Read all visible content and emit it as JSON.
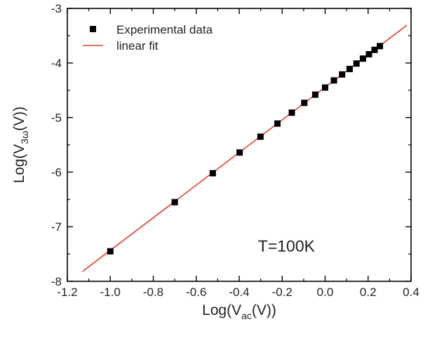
{
  "chart_data": {
    "type": "scatter",
    "title": "",
    "xlabel": {
      "prefix": "Log(V",
      "sub": "ac",
      "suffix": "(V))"
    },
    "ylabel": {
      "prefix": "Log(V",
      "sub": "3ω",
      "suffix": "(V))"
    },
    "xlim": [
      -1.2,
      0.4
    ],
    "ylim": [
      -8,
      -3
    ],
    "xticks": [
      -1.2,
      -1.0,
      -0.8,
      -0.6,
      -0.4,
      -0.2,
      0.0,
      0.2,
      0.4
    ],
    "xtick_labels": [
      "-1.2",
      "-1.0",
      "-0.8",
      "-0.6",
      "-0.4",
      "-0.2",
      "0.0",
      "0.2",
      "0.4"
    ],
    "yticks": [
      -8,
      -7,
      -6,
      -5,
      -4,
      -3
    ],
    "ytick_labels": [
      "-8",
      "-7",
      "-6",
      "-5",
      "-4",
      "-3"
    ],
    "grid": false,
    "legend_position": "top-left",
    "series": [
      {
        "name": "Experimental data",
        "kind": "scatter",
        "marker": "square",
        "color": "#000000",
        "x": [
          -1.0,
          -0.7,
          -0.523,
          -0.398,
          -0.301,
          -0.222,
          -0.155,
          -0.097,
          -0.046,
          0.0,
          0.041,
          0.079,
          0.114,
          0.146,
          0.176,
          0.204,
          0.23,
          0.255
        ],
        "y": [
          -7.45,
          -6.55,
          -6.02,
          -5.64,
          -5.35,
          -5.11,
          -4.91,
          -4.73,
          -4.58,
          -4.45,
          -4.32,
          -4.21,
          -4.11,
          -4.01,
          -3.92,
          -3.84,
          -3.76,
          -3.69
        ]
      },
      {
        "name": "linear fit",
        "kind": "line",
        "color": "#e8402a",
        "x": [
          -1.13,
          0.38
        ],
        "y": [
          -7.82,
          -3.31
        ]
      }
    ],
    "annotations": [
      {
        "text": "T=100K",
        "x": -0.18,
        "y": -7.35
      }
    ]
  }
}
